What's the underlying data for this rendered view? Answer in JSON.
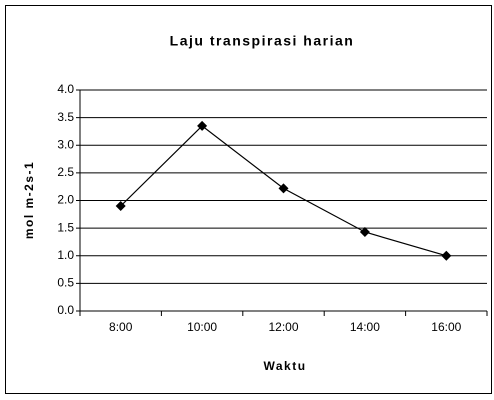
{
  "chart_data": {
    "type": "line",
    "title": "Laju transpirasi harian",
    "xlabel": "Waktu",
    "ylabel": "mol m-2s-1",
    "categories": [
      "8:00",
      "10:00",
      "12:00",
      "14:00",
      "16:00"
    ],
    "values": [
      1.9,
      3.35,
      2.22,
      1.43,
      1.0
    ],
    "color": "#000000",
    "ylim": [
      0,
      4
    ],
    "yticks": [
      {
        "value": 0,
        "label": "0.0"
      },
      0.5,
      {
        "value": 1,
        "label": "1.0"
      },
      1.5,
      {
        "value": 2,
        "label": "2.0"
      },
      2.5,
      {
        "value": 3,
        "label": "3.0"
      },
      3.5,
      {
        "value": 4,
        "label": "4.0"
      }
    ],
    "grid": true
  }
}
